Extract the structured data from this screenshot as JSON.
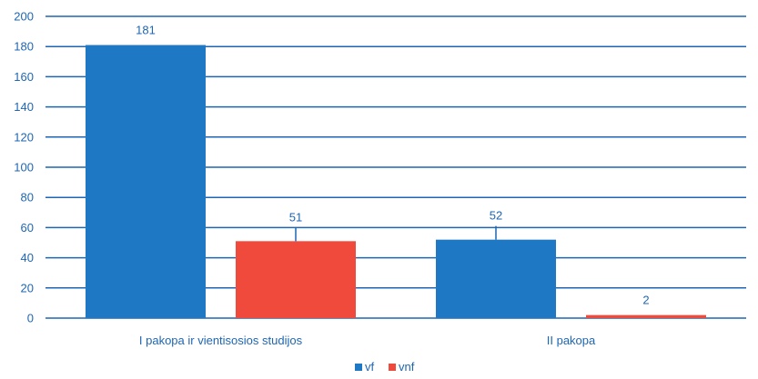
{
  "chart_data": {
    "type": "bar",
    "categories": [
      "I pakopa ir vientisosios studijos",
      "II pakopa"
    ],
    "series": [
      {
        "name": "vf",
        "values": [
          181,
          52
        ],
        "color": "#1f78c4"
      },
      {
        "name": "vnf",
        "values": [
          51,
          2
        ],
        "color": "#ef4a3c"
      }
    ],
    "ylim": [
      0,
      200
    ],
    "yticks": [
      0,
      20,
      40,
      60,
      80,
      100,
      120,
      140,
      160,
      180,
      200
    ],
    "data_labels": [
      [
        "181",
        "52"
      ],
      [
        "51",
        "2"
      ]
    ],
    "grid": true,
    "legend": "bottom-center",
    "axis_color": "#1e66b3",
    "grid_color": "#1e66b3"
  }
}
